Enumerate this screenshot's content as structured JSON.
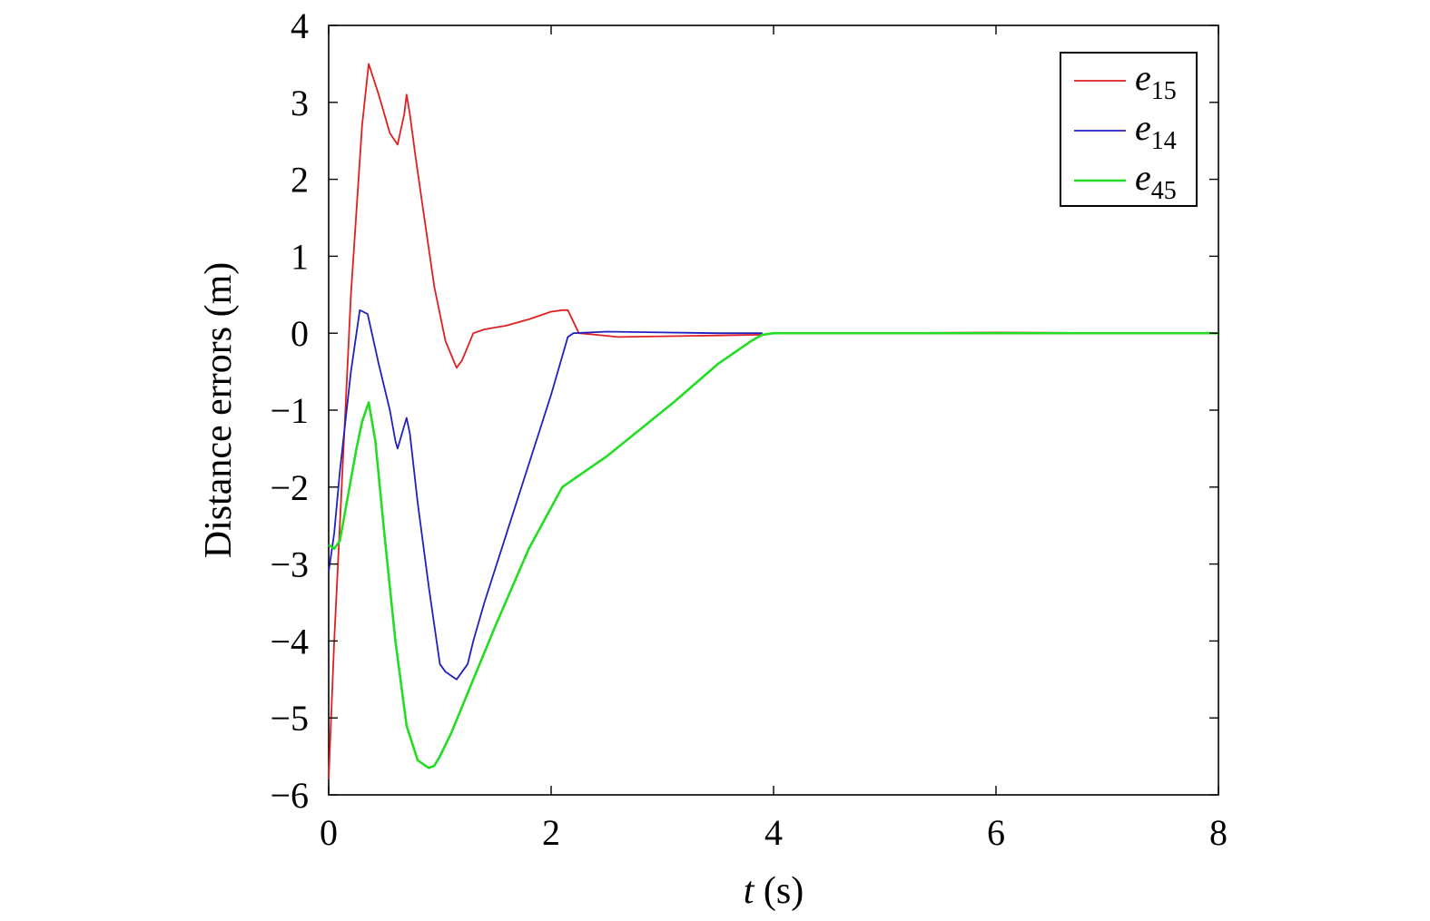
{
  "chart_data": {
    "type": "line",
    "title": "",
    "xlabel": "t (s)",
    "xlabel_var": "t",
    "xlabel_unit": " (s)",
    "ylabel": "Distance errors (m)",
    "xlim": [
      0,
      8
    ],
    "ylim": [
      -6,
      4
    ],
    "xticks": [
      0,
      2,
      4,
      6,
      8
    ],
    "yticks": [
      4,
      3,
      2,
      1,
      0,
      -1,
      -2,
      -3,
      -4,
      -5,
      -6
    ],
    "xtick_labels": [
      "0",
      "2",
      "4",
      "6",
      "8"
    ],
    "ytick_labels": [
      "4",
      "3",
      "2",
      "1",
      "0",
      "−1",
      "−2",
      "−3",
      "−4",
      "−5",
      "−6"
    ],
    "grid": false,
    "legend_position": "top-right",
    "series": [
      {
        "name": "e15",
        "name_base": "e",
        "name_sub": "15",
        "color": "#e02020",
        "x": [
          0,
          0.05,
          0.1,
          0.2,
          0.3,
          0.36,
          0.45,
          0.55,
          0.62,
          0.68,
          0.7,
          0.73,
          0.78,
          0.85,
          0.95,
          1.05,
          1.15,
          1.2,
          1.3,
          1.4,
          1.6,
          1.8,
          2.0,
          2.1,
          2.15,
          2.25,
          2.4,
          2.6,
          3.0,
          3.5,
          3.9,
          4.0,
          5.0,
          6.0,
          7.0,
          8.0
        ],
        "y": [
          -5.8,
          -4.0,
          -2.5,
          0.5,
          2.7,
          3.5,
          3.1,
          2.6,
          2.45,
          2.85,
          3.1,
          2.85,
          2.3,
          1.6,
          0.6,
          -0.1,
          -0.45,
          -0.35,
          0.0,
          0.05,
          0.1,
          0.18,
          0.28,
          0.3,
          0.3,
          0.0,
          -0.02,
          -0.05,
          -0.04,
          -0.03,
          -0.02,
          0.0,
          0.0,
          0.01,
          0.0,
          0.0
        ]
      },
      {
        "name": "e14",
        "name_base": "e",
        "name_sub": "14",
        "color": "#2020c0",
        "x": [
          0,
          0.05,
          0.1,
          0.2,
          0.28,
          0.35,
          0.45,
          0.55,
          0.6,
          0.62,
          0.68,
          0.7,
          0.73,
          0.8,
          0.9,
          1.0,
          1.05,
          1.1,
          1.15,
          1.2,
          1.25,
          1.3,
          1.4,
          1.6,
          1.8,
          2.0,
          2.15,
          2.2,
          2.5,
          3.0,
          3.5,
          3.9
        ],
        "y": [
          -3.1,
          -2.6,
          -1.8,
          -0.5,
          0.3,
          0.25,
          -0.4,
          -1.0,
          -1.4,
          -1.5,
          -1.2,
          -1.1,
          -1.3,
          -2.2,
          -3.3,
          -4.3,
          -4.4,
          -4.45,
          -4.5,
          -4.4,
          -4.3,
          -4.0,
          -3.5,
          -2.6,
          -1.7,
          -0.8,
          -0.05,
          0.0,
          0.02,
          0.01,
          0.0,
          0.0
        ]
      },
      {
        "name": "e45",
        "name_base": "e",
        "name_sub": "45",
        "color": "#22dd22",
        "x": [
          0,
          0.05,
          0.1,
          0.15,
          0.2,
          0.25,
          0.3,
          0.36,
          0.42,
          0.5,
          0.6,
          0.7,
          0.8,
          0.85,
          0.9,
          0.95,
          1.0,
          1.1,
          1.3,
          1.5,
          1.8,
          2.1,
          2.3,
          2.5,
          2.8,
          3.1,
          3.5,
          3.8,
          3.9,
          4.0,
          5.0,
          6.0,
          7.0,
          8.0
        ],
        "y": [
          -2.75,
          -2.8,
          -2.7,
          -2.3,
          -1.9,
          -1.5,
          -1.15,
          -0.9,
          -1.4,
          -2.6,
          -4.0,
          -5.1,
          -5.55,
          -5.6,
          -5.65,
          -5.62,
          -5.5,
          -5.2,
          -4.5,
          -3.8,
          -2.8,
          -2.0,
          -1.8,
          -1.6,
          -1.25,
          -0.9,
          -0.4,
          -0.1,
          -0.02,
          0.0,
          0.0,
          0.0,
          0.0,
          0.0
        ]
      }
    ]
  }
}
